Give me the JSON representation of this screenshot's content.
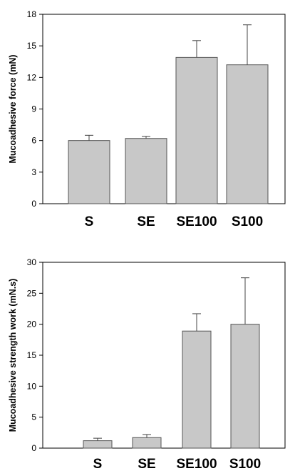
{
  "chart_data": [
    {
      "type": "bar",
      "ylabel": "Mucoadhesive force (mN)",
      "ylim": [
        0,
        18
      ],
      "yticks": [
        0,
        3,
        6,
        9,
        12,
        15,
        18
      ],
      "categories": [
        "S",
        "SE",
        "SE100",
        "S100"
      ],
      "values": [
        6.0,
        6.2,
        13.9,
        13.2
      ],
      "errors": [
        0.5,
        0.2,
        1.6,
        3.8
      ],
      "bar_color": "#c8c8c8",
      "grid": false
    },
    {
      "type": "bar",
      "ylabel": "Mucoadhesive strength work (mN.s)",
      "ylim": [
        0,
        30
      ],
      "yticks": [
        0,
        5,
        10,
        15,
        20,
        25,
        30
      ],
      "categories": [
        "S",
        "SE",
        "SE100",
        "S100"
      ],
      "values": [
        1.2,
        1.7,
        18.9,
        20.0
      ],
      "errors": [
        0.4,
        0.5,
        2.8,
        7.5
      ],
      "bar_color": "#c8c8c8",
      "grid": false
    }
  ]
}
